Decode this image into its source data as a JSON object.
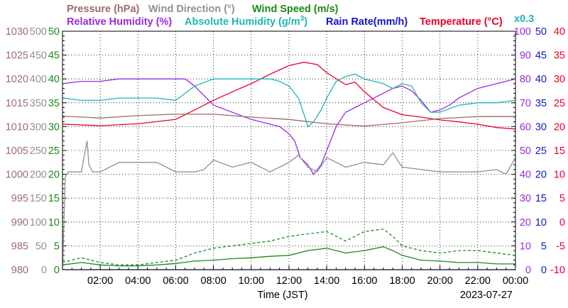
{
  "chart_data": {
    "type": "line",
    "date": "2023-07-27",
    "xlabel": "Time (JST)",
    "x_ticks": [
      "02:00",
      "04:00",
      "06:00",
      "08:00",
      "10:00",
      "12:00",
      "14:00",
      "16:00",
      "18:00",
      "20:00",
      "22:00",
      "00:00"
    ],
    "xlim_hours": [
      0,
      24
    ],
    "grid": true,
    "legend_row1": {
      "pressure": "Pressure (hPa)",
      "wind_dir": "Wind Direction (°)",
      "wind_speed": "Wind Speed (m/s)"
    },
    "legend_row2": {
      "rh": "Relative Humidity (%)",
      "ah_base": "Absolute Humidity (g/m",
      "ah_sup": "3",
      "ah_end": ")",
      "rain": "Rain Rate(mm/h)",
      "temp": "Temperature (°C)",
      "rain_scale": "x0.3"
    },
    "axes": {
      "pressure": {
        "ticks": [
          "1030",
          "1025",
          "1020",
          "1015",
          "1010",
          "1005",
          "1000",
          "995",
          "990",
          "985",
          "980"
        ],
        "range": [
          980,
          1030
        ],
        "color": "#a06a6a"
      },
      "wind_dir": {
        "ticks": [
          "500",
          "450",
          "400",
          "350",
          "300",
          "250",
          "200",
          "150",
          "100",
          "50",
          "0"
        ],
        "range": [
          0,
          500
        ],
        "color": "#909090"
      },
      "wind_speed": {
        "ticks": [
          "50",
          "45",
          "40",
          "35",
          "30",
          "25",
          "20",
          "15",
          "10",
          "5",
          "0"
        ],
        "range": [
          0,
          50
        ],
        "color": "#1a8a1a"
      },
      "rh": {
        "ticks": [
          "100",
          "90",
          "80",
          "70",
          "60",
          "50",
          "40",
          "30",
          "20",
          "10",
          "0"
        ],
        "range": [
          0,
          100
        ],
        "color": "#9a2ae0"
      },
      "rain": {
        "ticks": [
          "50",
          "45",
          "40",
          "35",
          "30",
          "25",
          "20",
          "15",
          "10",
          "5",
          "0"
        ],
        "range": [
          0,
          50
        ],
        "color": "#1414c8"
      },
      "temp": {
        "ticks": [
          "40",
          "35",
          "30",
          "25",
          "20",
          "15",
          "10",
          "5",
          "0",
          "-5",
          "-10"
        ],
        "range": [
          -10,
          40
        ],
        "color": "#e8002a"
      }
    },
    "series": [
      {
        "name": "Temperature (°C)",
        "axis": "temp",
        "color": "#e8002a",
        "x": [
          0,
          2,
          4,
          6,
          7,
          8,
          9,
          10,
          11,
          12,
          12.8,
          13.5,
          14,
          15,
          15.5,
          16,
          17,
          18,
          19,
          20,
          21,
          22,
          23,
          24
        ],
        "y": [
          20.5,
          20.2,
          20.6,
          21.5,
          23.5,
          25.5,
          27.3,
          29,
          31,
          32.8,
          33.5,
          33,
          31.3,
          28.8,
          29.3,
          27.3,
          24,
          22.5,
          22,
          21.4,
          21,
          20.5,
          19.8,
          19.5
        ]
      },
      {
        "name": "Relative Humidity (%)",
        "axis": "rh",
        "color": "#9a2ae0",
        "x": [
          0,
          1,
          2,
          3,
          4,
          5,
          6,
          6.5,
          7,
          8,
          9,
          10,
          11,
          11.5,
          12,
          12.3,
          12.6,
          13,
          13.3,
          13.7,
          14,
          14.5,
          15,
          15.5,
          16,
          17,
          17.5,
          18,
          18.5,
          19,
          19.5,
          20,
          20.5,
          21,
          22,
          23,
          24
        ],
        "y": [
          78,
          79,
          79,
          80,
          80,
          80,
          80,
          80,
          77,
          69,
          66,
          63,
          61,
          60,
          57,
          54,
          47,
          44,
          40,
          44,
          50,
          60,
          66,
          68,
          70,
          74,
          76,
          77,
          75,
          71,
          66,
          67,
          69,
          72,
          76,
          78,
          80
        ]
      },
      {
        "name": "Absolute Humidity (g/m3)",
        "axis": "rh",
        "color": "#20b6b6",
        "x": [
          0,
          1,
          2,
          3,
          4,
          5,
          6,
          6.5,
          7,
          8,
          9,
          10,
          11,
          11.5,
          12,
          12.5,
          12.8,
          13,
          13.3,
          13.7,
          14,
          14.5,
          15,
          15.5,
          16,
          17,
          17.5,
          18,
          18.5,
          19,
          19.5,
          20,
          21,
          22,
          23,
          24
        ],
        "y": [
          72,
          71,
          71,
          72,
          72,
          72,
          71,
          74,
          77,
          80,
          80,
          80,
          80,
          79,
          77,
          72,
          65,
          60,
          62,
          67,
          72,
          79,
          81,
          82,
          80,
          78,
          76,
          78,
          77,
          70,
          66,
          66,
          69,
          70,
          70,
          71
        ]
      },
      {
        "name": "Pressure (hPa)",
        "axis": "pressure",
        "color": "#a06a6a",
        "x": [
          0,
          2,
          4,
          6,
          8,
          10,
          12,
          14,
          16,
          18,
          20,
          22,
          24
        ],
        "y": [
          1012.2,
          1011.8,
          1012.3,
          1012.6,
          1012.6,
          1012,
          1011.5,
          1010.6,
          1010.1,
          1010.8,
          1011.7,
          1012.1,
          1012.1
        ]
      },
      {
        "name": "Wind Direction (°)",
        "axis": "wind_dir",
        "color": "#909090",
        "x": [
          0,
          0.15,
          0.3,
          1,
          1.3,
          1.4,
          1.6,
          2,
          3,
          4,
          5,
          6,
          6.5,
          7,
          7.5,
          8,
          9,
          10,
          11,
          12,
          12.5,
          13,
          13.5,
          14,
          15,
          16,
          17,
          17.5,
          18,
          19,
          20,
          21,
          22,
          23,
          23.5,
          24
        ],
        "y": [
          0,
          195,
          205,
          205,
          270,
          220,
          205,
          205,
          225,
          225,
          225,
          205,
          205,
          205,
          210,
          230,
          215,
          225,
          205,
          225,
          240,
          215,
          205,
          235,
          215,
          225,
          220,
          245,
          215,
          210,
          205,
          205,
          205,
          210,
          200,
          235
        ]
      },
      {
        "name": "Wind Speed (m/s)",
        "axis": "wind_speed",
        "color": "#1a8a1a",
        "x": [
          0,
          1,
          2,
          3,
          4,
          5,
          6,
          7,
          8,
          9,
          10,
          11,
          12,
          13,
          14,
          15,
          16,
          17,
          17.5,
          18,
          19,
          20,
          21,
          22,
          23,
          24
        ],
        "y": [
          1,
          1.5,
          1,
          0.8,
          0.8,
          1,
          1.3,
          1.8,
          2,
          2.3,
          2.5,
          2.8,
          3,
          4,
          4.5,
          3.5,
          4,
          4.8,
          4,
          3,
          2,
          1.8,
          1.5,
          1.5,
          1.2,
          1.2
        ]
      },
      {
        "name": "Wind Speed gust",
        "axis": "wind_speed",
        "color": "#1a8a1a",
        "dashed": true,
        "x": [
          0,
          1,
          2,
          3,
          4,
          5,
          6,
          7,
          8,
          9,
          10,
          11,
          12,
          13,
          14,
          15,
          16,
          17,
          17.5,
          18,
          19,
          20,
          21,
          22,
          23,
          24
        ],
        "y": [
          1.5,
          2.5,
          1.5,
          1,
          1,
          1.5,
          2,
          3.5,
          4.5,
          5,
          5.5,
          6,
          7,
          7.5,
          8,
          6,
          8,
          8.5,
          7,
          5,
          4,
          3.5,
          4,
          4,
          3.5,
          3
        ]
      },
      {
        "name": "Rain Rate(mm/h)",
        "axis": "rain",
        "color": "#1414c8",
        "x": [
          0,
          24
        ],
        "y": [
          0,
          0
        ]
      }
    ]
  }
}
